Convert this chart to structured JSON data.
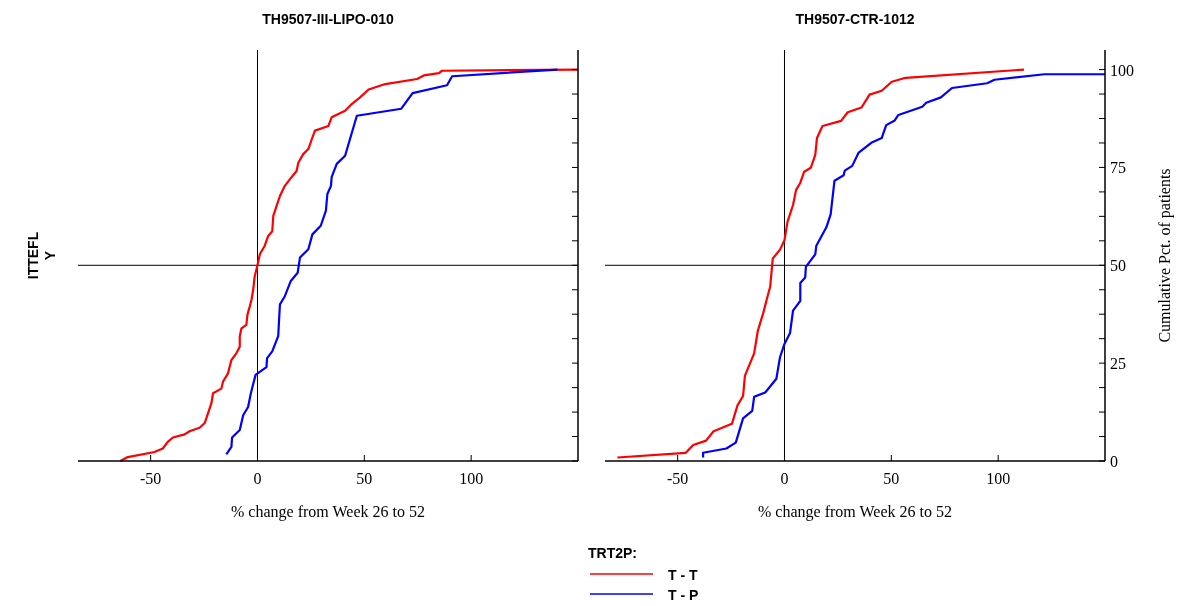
{
  "chart_data": [
    {
      "type": "line",
      "title": "TH9507-III-LIPO-010",
      "xlabel": "% change from Week 26 to 52",
      "ylabel": "ITTEFL\nY",
      "legend_title": "TRT2P:",
      "legend": "bottom",
      "tick_labels": "x",
      "xlim": [
        -84,
        150
      ],
      "xticks": [
        -50,
        0,
        50,
        100
      ],
      "y2lim": [
        0,
        105
      ],
      "y2ticks": [
        0,
        {
          "value": 6.25,
          "label": null
        },
        {
          "value": 12.5,
          "label": null
        },
        {
          "value": 18.75,
          "label": null
        },
        25,
        {
          "value": 31.25,
          "label": null
        },
        {
          "value": 37.5,
          "label": null
        },
        {
          "value": 43.75,
          "label": null
        },
        50,
        {
          "value": 56.25,
          "label": null
        },
        {
          "value": 62.5,
          "label": null
        },
        {
          "value": 68.75,
          "label": null
        },
        75,
        {
          "value": 81.25,
          "label": null
        },
        {
          "value": 87.5,
          "label": null
        },
        {
          "value": 93.75,
          "label": null
        },
        100
      ],
      "ref_lines": [
        {
          "axis": "x",
          "value": 0,
          "color": "#000000"
        },
        {
          "axis": "y2",
          "value": 50,
          "color": "#000000"
        }
      ],
      "series": [
        {
          "name": "T - T",
          "color": "#ff0000",
          "axis": "y2",
          "x": [
            -64.2,
            -60.7,
            -48.2,
            -44.3,
            -42,
            -39.6,
            -34.1,
            -31.8,
            -27.1,
            -24.7,
            -23.2,
            -21.6,
            -20.8,
            -16.9,
            -16.1,
            -13.8,
            -12.2,
            -9.9,
            -8.3,
            -8.3,
            -7.5,
            -5.2,
            -4.7,
            -3.6,
            -2.8,
            -2,
            -1.3,
            0,
            1.1,
            3.4,
            5,
            6.9,
            7.4,
            8.9,
            10.5,
            12.8,
            15.2,
            18.3,
            19.1,
            21.4,
            23.8,
            25.4,
            26.9,
            33.2,
            34.7,
            41,
            44.1,
            48,
            52,
            59.8,
            74.7,
            77.8,
            84.9,
            86.4,
            150
          ],
          "values": [
            0,
            1,
            2.3,
            3.2,
            4.9,
            6,
            6.8,
            7.6,
            8.5,
            9.7,
            12.1,
            14.7,
            17.3,
            18.5,
            20.3,
            22.4,
            25.8,
            27.5,
            29.2,
            31.8,
            33.9,
            34.8,
            37.4,
            39.5,
            41.2,
            43.8,
            47.2,
            50,
            52.8,
            55,
            57.5,
            58.7,
            62.6,
            65.1,
            67.7,
            70.3,
            72,
            74.1,
            76.2,
            78.4,
            79.7,
            82.2,
            84.4,
            85.6,
            87.8,
            89.5,
            91.2,
            92.9,
            94.9,
            96.3,
            97.6,
            98.5,
            99.1,
            99.7,
            100
          ]
        },
        {
          "name": "T - P",
          "color": "#0000ff",
          "axis": "y2",
          "x": [
            -14.6,
            -12.2,
            -11.9,
            -8.3,
            -6.7,
            -4.4,
            -3.1,
            -0.9,
            4.2,
            4.5,
            6.9,
            9.7,
            10.5,
            12.8,
            15.6,
            18.8,
            19.9,
            23.8,
            25.7,
            29.6,
            32,
            32.7,
            34.4,
            34.7,
            37.1,
            41,
            46.5,
            67.3,
            72.6,
            88.7,
            91.1,
            140.4
          ],
          "values": [
            1.7,
            3.6,
            6,
            7.9,
            11.7,
            13.8,
            17.3,
            22,
            24,
            26.3,
            28,
            31.9,
            40,
            42.1,
            46,
            48.1,
            52,
            54.1,
            57.9,
            60.1,
            63.9,
            68.2,
            70.3,
            72.5,
            75.9,
            78,
            88.2,
            90,
            94,
            96,
            98.3,
            100
          ]
        }
      ]
    },
    {
      "type": "line",
      "title": "TH9507-CTR-1012",
      "xlabel": "% change from Week 26 to 52",
      "y2label": "Cumulative Pct. of patients",
      "xlim": [
        -84,
        150
      ],
      "xticks": [
        -50,
        0,
        50,
        100
      ],
      "y2lim": [
        0,
        105
      ],
      "y2ticks": [
        0,
        {
          "value": 6.25,
          "label": null
        },
        {
          "value": 12.5,
          "label": null
        },
        {
          "value": 18.75,
          "label": null
        },
        25,
        {
          "value": 31.25,
          "label": null
        },
        {
          "value": 37.5,
          "label": null
        },
        {
          "value": 43.75,
          "label": null
        },
        50,
        {
          "value": 56.25,
          "label": null
        },
        {
          "value": 62.5,
          "label": null
        },
        {
          "value": 68.75,
          "label": null
        },
        75,
        {
          "value": 81.25,
          "label": null
        },
        {
          "value": 87.5,
          "label": null
        },
        {
          "value": 93.75,
          "label": null
        },
        100
      ],
      "ref_lines": [
        {
          "axis": "x",
          "value": 0,
          "color": "#000000"
        },
        {
          "axis": "y2",
          "value": 50,
          "color": "#000000"
        }
      ],
      "series": [
        {
          "color": "#ff0000",
          "axis": "y2",
          "x": [
            -78.2,
            -46.2,
            -42.7,
            -36.7,
            -33.2,
            -24.6,
            -22,
            -19.4,
            -18.5,
            -14.2,
            -12.5,
            -9.9,
            -8.1,
            -6.7,
            -5.5,
            -2.1,
            0,
            1.4,
            4,
            5.4,
            7.4,
            9.2,
            12.3,
            14.4,
            15.2,
            17.8,
            26.5,
            29.6,
            36,
            39.8,
            45.5,
            50.2,
            56.7,
            112.1
          ],
          "values": [
            0.9,
            2.1,
            4.1,
            5.2,
            7.6,
            9.5,
            14.2,
            16.6,
            21.8,
            27.5,
            33.2,
            37.9,
            41.7,
            44.5,
            51.7,
            54,
            56.4,
            61.1,
            65.4,
            69.2,
            71.1,
            73.9,
            74.9,
            78.2,
            82.5,
            85.6,
            86.9,
            89.1,
            90.3,
            93.6,
            94.6,
            96.9,
            97.9,
            100
          ]
        },
        {
          "color": "#0000ff",
          "axis": "y2",
          "x": [
            -38.1,
            -38.1,
            -27.2,
            -22.8,
            -19.4,
            -15.1,
            -14.2,
            -9,
            -3.8,
            -2.1,
            0,
            2.6,
            4,
            7.4,
            7.4,
            9.7,
            10,
            14.4,
            14.9,
            19.6,
            21.6,
            23.4,
            27.7,
            28.2,
            31.7,
            34.6,
            40.6,
            45.5,
            47.6,
            51.6,
            53.3,
            64.5,
            66.3,
            73.2,
            78.4,
            94.8,
            98.3,
            121.6,
            150
          ],
          "values": [
            0.9,
            2.1,
            3.2,
            4.7,
            10.9,
            12.8,
            16.4,
            17.5,
            21,
            26.5,
            29.9,
            32.7,
            38.4,
            40.9,
            45.5,
            46.9,
            49.6,
            52.8,
            55,
            59.7,
            63,
            71.6,
            73,
            74.2,
            75.4,
            78.7,
            81.3,
            82.5,
            85.8,
            87,
            88.4,
            90.5,
            91.5,
            92.9,
            95.3,
            96.5,
            97.4,
            98.8,
            98.8
          ]
        }
      ]
    }
  ]
}
